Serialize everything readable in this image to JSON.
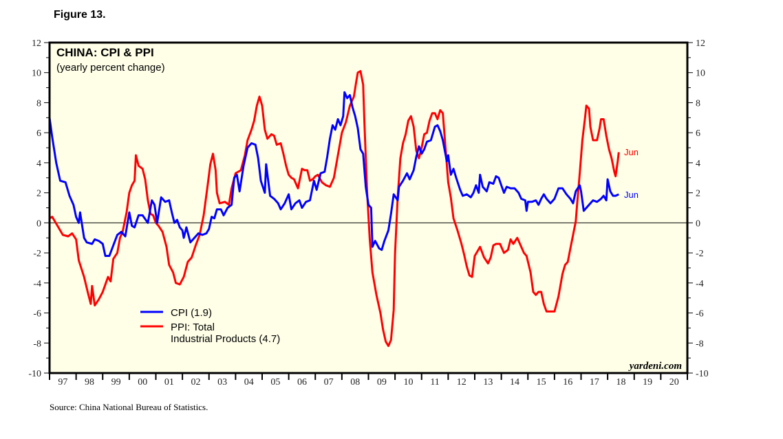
{
  "figure_label": "Figure 13.",
  "source": "Source: China National Bureau of Statistics.",
  "brand": "yardeni.com",
  "chart_data": {
    "type": "line",
    "title": "CHINA: CPI & PPI",
    "subtitle": "(yearly percent change)",
    "xlabel": "",
    "ylabel": "",
    "ylim": [
      -10,
      12
    ],
    "xlim": [
      1997,
      2021
    ],
    "y_ticks": [
      12,
      10,
      8,
      6,
      4,
      2,
      0,
      -2,
      -4,
      -6,
      -8,
      -10
    ],
    "x_tick_labels": [
      "97",
      "98",
      "99",
      "00",
      "01",
      "02",
      "03",
      "04",
      "05",
      "06",
      "07",
      "08",
      "09",
      "10",
      "11",
      "12",
      "13",
      "14",
      "15",
      "16",
      "17",
      "18",
      "19",
      "20"
    ],
    "legend": {
      "placement": "lower-left",
      "entries": [
        "CPI (1.9)",
        "PPI: Total",
        "Industrial Products (4.7)"
      ]
    },
    "colors": {
      "cpi": "#0000ff",
      "ppi": "#ff0000",
      "plot_bg": "#ffffe8"
    },
    "series": [
      {
        "name": "CPI",
        "end_label": "Jun",
        "x": [
          1997.0,
          1997.1,
          1997.25,
          1997.4,
          1997.6,
          1997.75,
          1997.9,
          1998.0,
          1998.1,
          1998.15,
          1998.3,
          1998.4,
          1998.6,
          1998.7,
          1998.85,
          1999.0,
          1999.1,
          1999.25,
          1999.4,
          1999.55,
          1999.7,
          1999.85,
          2000.0,
          2000.1,
          2000.2,
          2000.35,
          2000.5,
          2000.7,
          2000.85,
          2000.95,
          2001.05,
          2001.2,
          2001.35,
          2001.5,
          2001.6,
          2001.7,
          2001.8,
          2001.9,
          2002.0,
          2002.05,
          2002.15,
          2002.3,
          2002.45,
          2002.6,
          2002.75,
          2002.9,
          2003.0,
          2003.1,
          2003.2,
          2003.3,
          2003.45,
          2003.55,
          2003.7,
          2003.85,
          2003.95,
          2004.05,
          2004.15,
          2004.3,
          2004.45,
          2004.6,
          2004.75,
          2004.85,
          2004.95,
          2005.1,
          2005.15,
          2005.3,
          2005.45,
          2005.6,
          2005.7,
          2005.85,
          2006.0,
          2006.1,
          2006.25,
          2006.4,
          2006.5,
          2006.65,
          2006.8,
          2006.95,
          2007.05,
          2007.2,
          2007.35,
          2007.45,
          2007.55,
          2007.65,
          2007.75,
          2007.85,
          2007.95,
          2008.05,
          2008.1,
          2008.2,
          2008.3,
          2008.4,
          2008.5,
          2008.6,
          2008.7,
          2008.8,
          2008.9,
          2009.0,
          2009.1,
          2009.15,
          2009.25,
          2009.4,
          2009.5,
          2009.6,
          2009.75,
          2009.85,
          2009.95,
          2010.1,
          2010.15,
          2010.3,
          2010.45,
          2010.55,
          2010.7,
          2010.8,
          2010.9,
          2011.0,
          2011.1,
          2011.2,
          2011.35,
          2011.5,
          2011.6,
          2011.7,
          2011.8,
          2011.95,
          2012.0,
          2012.1,
          2012.2,
          2012.3,
          2012.45,
          2012.55,
          2012.7,
          2012.85,
          2012.95,
          2013.05,
          2013.15,
          2013.2,
          2013.3,
          2013.45,
          2013.55,
          2013.7,
          2013.8,
          2013.9,
          2014.0,
          2014.1,
          2014.2,
          2014.35,
          2014.5,
          2014.65,
          2014.75,
          2014.9,
          2014.95,
          2015.0,
          2015.15,
          2015.3,
          2015.4,
          2015.5,
          2015.6,
          2015.7,
          2015.85,
          2016.0,
          2016.15,
          2016.3,
          2016.45,
          2016.6,
          2016.7,
          2016.8,
          2016.95,
          2017.0,
          2017.1,
          2017.3,
          2017.45,
          2017.6,
          2017.75,
          2017.85,
          2017.95,
          2018.0,
          2018.1,
          2018.2,
          2018.3,
          2018.42
        ],
        "values": [
          7.0,
          5.7,
          4.0,
          2.8,
          2.7,
          1.8,
          1.2,
          0.4,
          0.0,
          0.7,
          -1.0,
          -1.3,
          -1.4,
          -1.1,
          -1.2,
          -1.4,
          -2.2,
          -2.2,
          -1.5,
          -0.8,
          -0.6,
          -0.9,
          0.7,
          -0.2,
          -0.3,
          0.5,
          0.5,
          0.0,
          1.5,
          1.2,
          0.0,
          1.7,
          1.4,
          1.5,
          0.7,
          0.0,
          0.2,
          -0.3,
          -0.5,
          -1.0,
          -0.3,
          -1.3,
          -1.0,
          -0.7,
          -0.8,
          -0.7,
          -0.4,
          0.4,
          0.3,
          0.9,
          0.9,
          0.5,
          1.0,
          1.2,
          3.0,
          3.2,
          2.1,
          3.8,
          5.0,
          5.3,
          5.2,
          4.3,
          2.8,
          2.0,
          3.9,
          1.8,
          1.6,
          1.3,
          0.9,
          1.3,
          1.9,
          0.9,
          1.3,
          1.5,
          1.0,
          1.4,
          1.5,
          2.8,
          2.2,
          3.3,
          3.4,
          4.4,
          5.6,
          6.5,
          6.2,
          6.9,
          6.5,
          7.1,
          8.7,
          8.3,
          8.5,
          7.7,
          7.1,
          6.3,
          4.9,
          4.6,
          2.4,
          1.2,
          1.0,
          -1.6,
          -1.2,
          -1.7,
          -1.8,
          -1.2,
          -0.5,
          0.6,
          1.9,
          1.5,
          2.4,
          2.8,
          3.3,
          2.9,
          3.5,
          4.4,
          5.1,
          4.6,
          4.9,
          5.4,
          5.5,
          6.4,
          6.5,
          6.1,
          5.5,
          4.1,
          4.5,
          3.2,
          3.6,
          3.0,
          2.2,
          1.8,
          1.9,
          1.7,
          2.0,
          2.5,
          2.0,
          3.2,
          2.4,
          2.1,
          2.7,
          2.6,
          3.1,
          3.0,
          2.5,
          2.0,
          2.4,
          2.3,
          2.3,
          2.0,
          1.6,
          1.5,
          0.8,
          1.4,
          1.4,
          1.5,
          1.2,
          1.6,
          1.9,
          1.6,
          1.3,
          1.6,
          2.3,
          2.3,
          1.9,
          1.6,
          1.3,
          2.1,
          2.5,
          2.1,
          0.8,
          1.2,
          1.5,
          1.4,
          1.6,
          1.8,
          1.5,
          2.9,
          2.1,
          1.8,
          1.8,
          1.9
        ]
      },
      {
        "name": "PPI: Total Industrial Products",
        "end_label": "Jun",
        "x": [
          1997.0,
          1997.1,
          1997.3,
          1997.5,
          1997.7,
          1997.85,
          1998.0,
          1998.1,
          1998.3,
          1998.45,
          1998.55,
          1998.6,
          1998.7,
          1998.85,
          1999.0,
          1999.2,
          1999.3,
          1999.4,
          1999.55,
          1999.65,
          1999.75,
          1999.9,
          2000.0,
          2000.1,
          2000.2,
          2000.25,
          2000.35,
          2000.5,
          2000.6,
          2000.7,
          2000.8,
          2000.9,
          2001.0,
          2001.1,
          2001.25,
          2001.4,
          2001.5,
          2001.65,
          2001.75,
          2001.9,
          2002.05,
          2002.2,
          2002.35,
          2002.5,
          2002.65,
          2002.8,
          2002.95,
          2003.05,
          2003.15,
          2003.25,
          2003.3,
          2003.4,
          2003.6,
          2003.75,
          2003.85,
          2004.0,
          2004.1,
          2004.2,
          2004.35,
          2004.45,
          2004.6,
          2004.7,
          2004.8,
          2004.9,
          2005.0,
          2005.1,
          2005.2,
          2005.35,
          2005.45,
          2005.55,
          2005.7,
          2005.8,
          2005.9,
          2006.0,
          2006.1,
          2006.2,
          2006.35,
          2006.5,
          2006.6,
          2006.7,
          2006.8,
          2006.9,
          2007.0,
          2007.1,
          2007.25,
          2007.4,
          2007.55,
          2007.7,
          2007.85,
          2008.0,
          2008.15,
          2008.3,
          2008.45,
          2008.55,
          2008.6,
          2008.7,
          2008.8,
          2008.85,
          2008.95,
          2009.05,
          2009.15,
          2009.3,
          2009.45,
          2009.55,
          2009.65,
          2009.75,
          2009.85,
          2009.95,
          2010.0,
          2010.1,
          2010.2,
          2010.3,
          2010.4,
          2010.5,
          2010.6,
          2010.7,
          2010.8,
          2010.9,
          2011.0,
          2011.1,
          2011.2,
          2011.3,
          2011.4,
          2011.5,
          2011.6,
          2011.7,
          2011.8,
          2011.9,
          2012.0,
          2012.1,
          2012.2,
          2012.35,
          2012.5,
          2012.6,
          2012.7,
          2012.8,
          2012.9,
          2013.0,
          2013.1,
          2013.2,
          2013.35,
          2013.5,
          2013.6,
          2013.7,
          2013.8,
          2013.95,
          2014.1,
          2014.25,
          2014.35,
          2014.45,
          2014.6,
          2014.7,
          2014.85,
          2014.95,
          2015.1,
          2015.2,
          2015.3,
          2015.4,
          2015.5,
          2015.6,
          2015.7,
          2015.85,
          2016.0,
          2016.15,
          2016.3,
          2016.4,
          2016.5,
          2016.6,
          2016.7,
          2016.8,
          2016.85,
          2016.95,
          2017.05,
          2017.15,
          2017.2,
          2017.3,
          2017.35,
          2017.45,
          2017.6,
          2017.7,
          2017.75,
          2017.85,
          2017.95,
          2018.05,
          2018.15,
          2018.25,
          2018.3,
          2018.38,
          2018.42
        ],
        "values": [
          0.3,
          0.4,
          -0.2,
          -0.8,
          -0.9,
          -0.7,
          -1.1,
          -2.5,
          -3.6,
          -4.7,
          -5.4,
          -4.2,
          -5.5,
          -5.1,
          -4.6,
          -3.6,
          -3.9,
          -2.4,
          -2.0,
          -1.0,
          -0.6,
          0.7,
          2.0,
          2.5,
          2.8,
          4.5,
          3.8,
          3.6,
          2.9,
          1.5,
          0.6,
          0.5,
          0.0,
          -0.2,
          -0.6,
          -1.6,
          -2.8,
          -3.3,
          -4.0,
          -4.1,
          -3.6,
          -2.6,
          -2.3,
          -1.5,
          -0.8,
          0.5,
          2.5,
          3.9,
          4.6,
          3.5,
          2.0,
          1.3,
          1.4,
          1.2,
          2.3,
          3.3,
          3.4,
          3.5,
          4.5,
          5.5,
          6.2,
          6.8,
          7.8,
          8.4,
          7.8,
          6.2,
          5.6,
          5.9,
          5.8,
          5.2,
          5.3,
          4.6,
          3.8,
          3.2,
          3.0,
          2.9,
          2.3,
          3.6,
          3.5,
          3.5,
          2.8,
          2.9,
          3.1,
          3.2,
          2.7,
          2.5,
          2.4,
          3.0,
          4.5,
          6.0,
          6.7,
          7.8,
          8.4,
          9.5,
          10.0,
          10.1,
          9.2,
          6.6,
          2.0,
          -1.1,
          -3.3,
          -4.8,
          -6.0,
          -7.1,
          -7.9,
          -8.2,
          -7.8,
          -5.8,
          -2.1,
          1.7,
          4.3,
          5.3,
          5.9,
          6.8,
          7.1,
          6.4,
          4.8,
          4.3,
          5.0,
          5.9,
          6.0,
          6.8,
          7.3,
          7.3,
          6.9,
          7.5,
          7.3,
          5.0,
          2.7,
          1.7,
          0.3,
          -0.5,
          -1.4,
          -2.1,
          -2.9,
          -3.5,
          -3.6,
          -2.2,
          -1.9,
          -1.6,
          -2.3,
          -2.7,
          -2.3,
          -1.5,
          -1.4,
          -1.4,
          -2.0,
          -1.8,
          -1.1,
          -1.4,
          -1.0,
          -1.4,
          -2.0,
          -2.2,
          -3.3,
          -4.6,
          -4.8,
          -4.6,
          -4.6,
          -5.4,
          -5.9,
          -5.9,
          -5.9,
          -4.9,
          -3.4,
          -2.8,
          -2.6,
          -1.7,
          -0.8,
          0.1,
          1.2,
          3.3,
          5.5,
          7.0,
          7.8,
          7.6,
          6.4,
          5.5,
          5.5,
          6.3,
          6.9,
          6.9,
          5.8,
          4.9,
          4.3,
          3.4,
          3.1,
          4.1,
          4.7
        ]
      }
    ]
  }
}
